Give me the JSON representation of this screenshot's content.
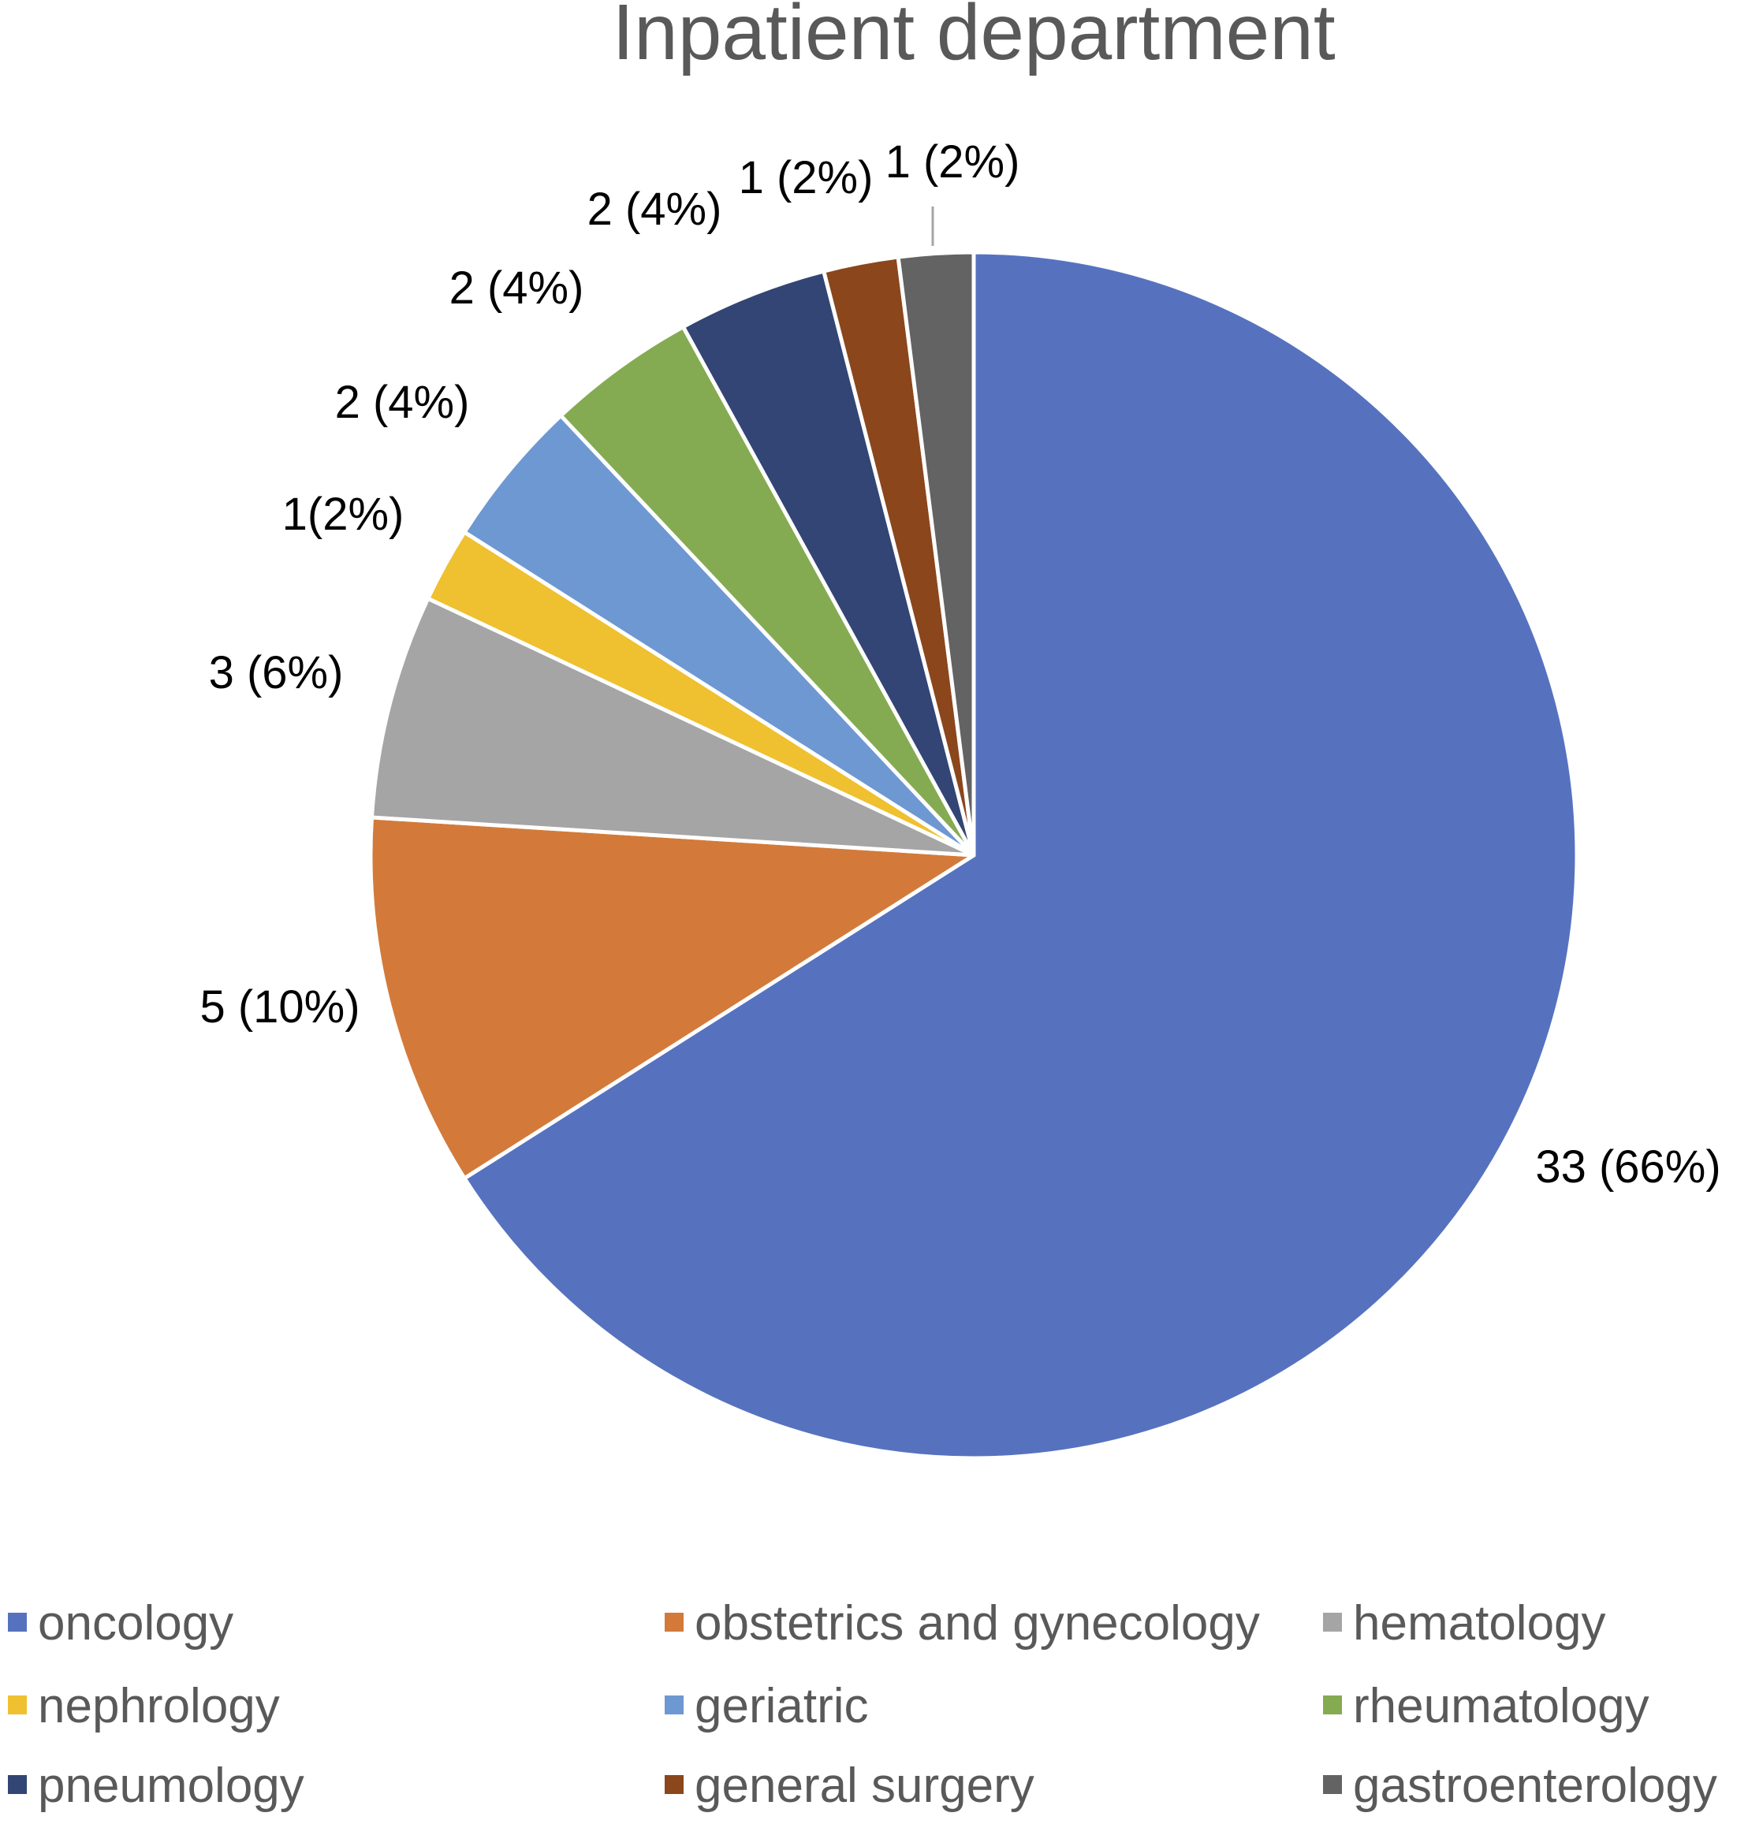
{
  "chart_data": {
    "type": "pie",
    "title": "Inpatient department",
    "slices": [
      {
        "name": "oncology",
        "value": 33,
        "label": "33 (66%)",
        "color": "#5672BF"
      },
      {
        "name": "obstetrics and gynecology",
        "value": 5,
        "label": "5 (10%)",
        "color": "#D37A3A"
      },
      {
        "name": "hematology",
        "value": 3,
        "label": "3 (6%)",
        "color": "#A5A5A5"
      },
      {
        "name": "nephrology",
        "value": 1,
        "label": "1(2%)",
        "color": "#EFC02F"
      },
      {
        "name": "geriatric",
        "value": 2,
        "label": "2 (4%)",
        "color": "#6E98D1"
      },
      {
        "name": "rheumatology",
        "value": 2,
        "label": "2 (4%)",
        "color": "#84AB52"
      },
      {
        "name": "pneumology",
        "value": 2,
        "label": "2 (4%)",
        "color": "#334574"
      },
      {
        "name": "general surgery",
        "value": 1,
        "label": "1 (2%)",
        "color": "#8B461C"
      },
      {
        "name": "gastroenterology",
        "value": 1,
        "label": "1 (2%)",
        "color": "#636363"
      }
    ],
    "legend_position": "bottom"
  }
}
